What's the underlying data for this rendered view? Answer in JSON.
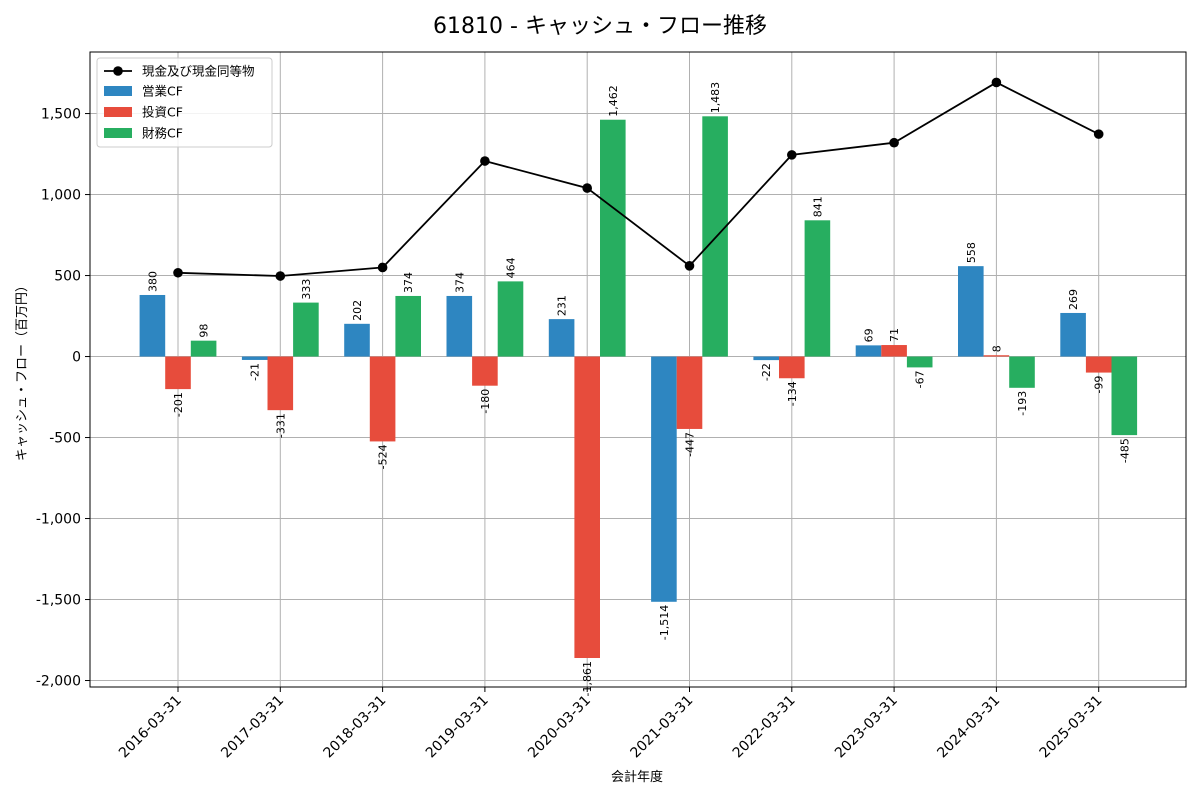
{
  "chart_data": {
    "type": "bar",
    "title": "61810 - キャッシュ・フロー推移",
    "xlabel": "会計年度",
    "ylabel": "キャッシュ・フロー（百万円）",
    "categories": [
      "2016-03-31",
      "2017-03-31",
      "2018-03-31",
      "2019-03-31",
      "2020-03-31",
      "2021-03-31",
      "2022-03-31",
      "2023-03-31",
      "2024-03-31",
      "2025-03-31"
    ],
    "series": [
      {
        "name": "営業CF",
        "color": "#2e86c1",
        "values": [
          380,
          -21,
          202,
          374,
          231,
          -1514,
          -22,
          69,
          558,
          269
        ],
        "labels": [
          "380",
          "-21",
          "202",
          "374",
          "231",
          "-1,514",
          "-22",
          "69",
          "558",
          "269"
        ]
      },
      {
        "name": "投資CF",
        "color": "#e74c3c",
        "values": [
          -201,
          -331,
          -524,
          -180,
          -1861,
          -447,
          -134,
          71,
          8,
          -99
        ],
        "labels": [
          "-201",
          "-331",
          "-524",
          "-180",
          "-1,861",
          "-447",
          "-134",
          "71",
          "8",
          "-99"
        ]
      },
      {
        "name": "財務CF",
        "color": "#27ae60",
        "values": [
          98,
          333,
          374,
          464,
          1462,
          1483,
          841,
          -67,
          -193,
          -485
        ],
        "labels": [
          "98",
          "333",
          "374",
          "464",
          "1,462",
          "1,483",
          "841",
          "-67",
          "-193",
          "-485"
        ]
      }
    ],
    "line": {
      "name": "現金及び現金同等物",
      "color": "#000000",
      "values": [
        517,
        497,
        550,
        1207,
        1040,
        560,
        1245,
        1320,
        1692,
        1373
      ]
    },
    "yticks": [
      -2000,
      -1500,
      -1000,
      -500,
      0,
      500,
      1000,
      1500
    ],
    "ytick_labels": [
      "-2,000",
      "-1,500",
      "-1,000",
      "-500",
      "0",
      "500",
      "1,000",
      "1,500"
    ],
    "ylim": [
      -2040,
      1880
    ],
    "grid": true,
    "legend": "top-left"
  }
}
